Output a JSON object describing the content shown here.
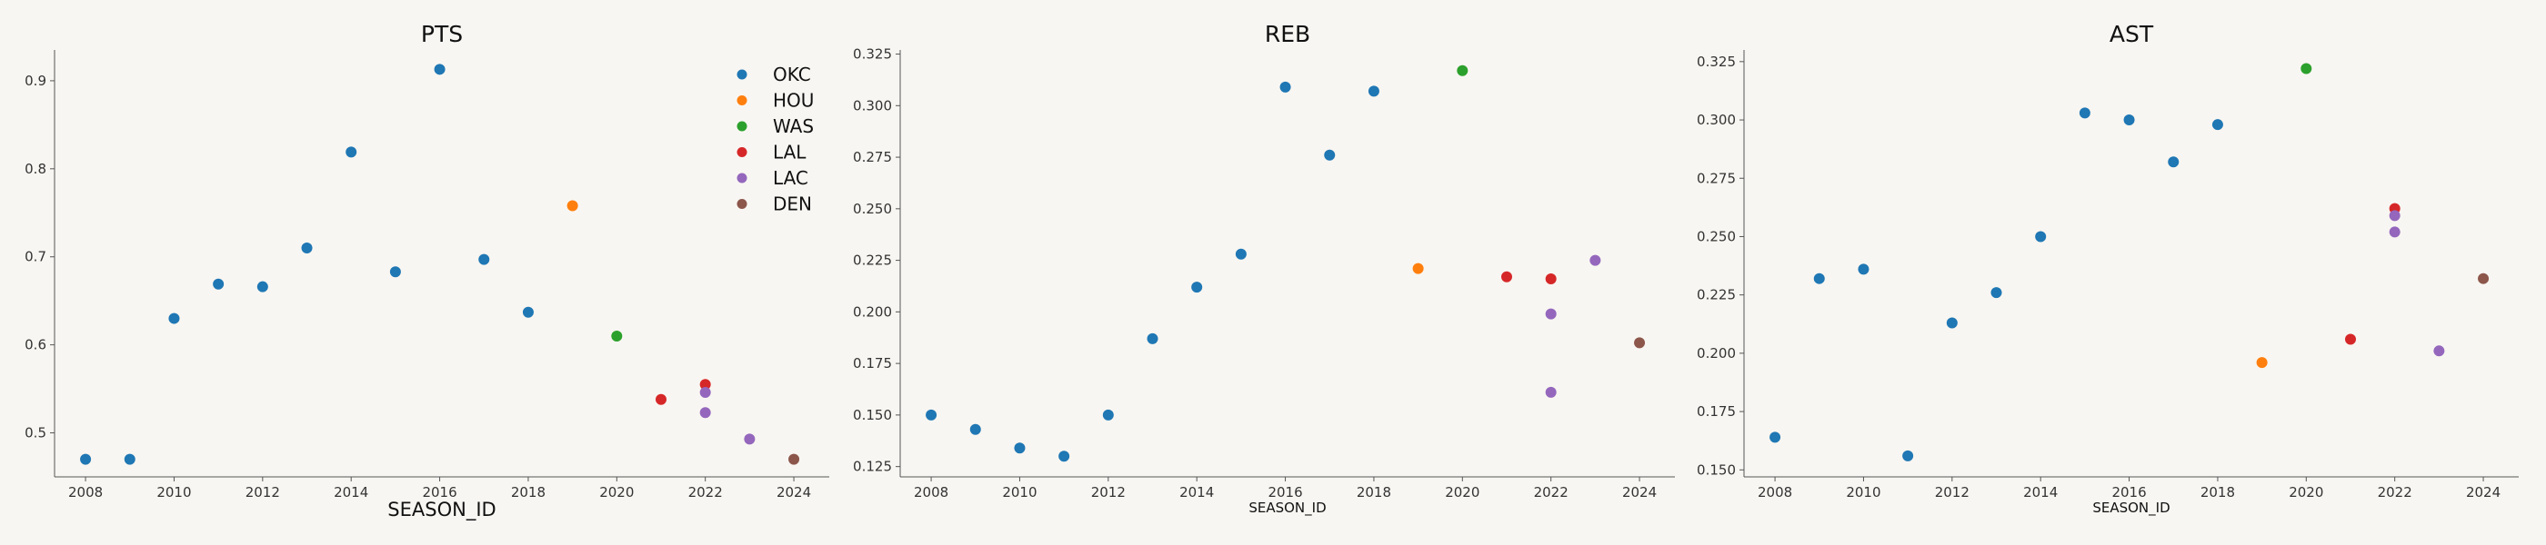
{
  "chart_data": [
    {
      "type": "scatter",
      "title": "PTS",
      "xlabel": "SEASON_ID",
      "ylabel": "",
      "xlim": [
        2007.3,
        2024.8
      ],
      "ylim": [
        0.45,
        0.935
      ],
      "xticks": [
        "2008",
        "2010",
        "2012",
        "2014",
        "2016",
        "2018",
        "2020",
        "2022",
        "2024"
      ],
      "yticks": [
        "0.5",
        "0.6",
        "0.7",
        "0.8",
        "0.9"
      ],
      "legend": "top-right",
      "series": [
        {
          "name": "OKC",
          "color": "#1f77b4",
          "points": [
            [
              2008,
              0.47
            ],
            [
              2009,
              0.47
            ],
            [
              2010,
              0.63
            ],
            [
              2011,
              0.669
            ],
            [
              2012,
              0.666
            ],
            [
              2013,
              0.71
            ],
            [
              2014,
              0.819
            ],
            [
              2015,
              0.683
            ],
            [
              2016,
              0.913
            ],
            [
              2017,
              0.697
            ],
            [
              2018,
              0.637
            ]
          ]
        },
        {
          "name": "HOU",
          "color": "#ff7f0e",
          "points": [
            [
              2019,
              0.758
            ]
          ]
        },
        {
          "name": "WAS",
          "color": "#2ca02c",
          "points": [
            [
              2020,
              0.61
            ]
          ]
        },
        {
          "name": "LAL",
          "color": "#d62728",
          "points": [
            [
              2021,
              0.538
            ],
            [
              2022,
              0.555
            ]
          ]
        },
        {
          "name": "LAC",
          "color": "#9467bd",
          "points": [
            [
              2022,
              0.546
            ],
            [
              2022,
              0.523
            ],
            [
              2023,
              0.493
            ]
          ]
        },
        {
          "name": "DEN",
          "color": "#8c564b",
          "points": [
            [
              2024,
              0.47
            ]
          ]
        }
      ]
    },
    {
      "type": "scatter",
      "title": "REB",
      "xlabel": "SEASON_ID",
      "ylabel": "",
      "xlim": [
        2007.3,
        2024.8
      ],
      "ylim": [
        0.12,
        0.327
      ],
      "xticks": [
        "2008",
        "2010",
        "2012",
        "2014",
        "2016",
        "2018",
        "2020",
        "2022",
        "2024"
      ],
      "yticks": [
        "0.125",
        "0.150",
        "0.175",
        "0.200",
        "0.225",
        "0.250",
        "0.275",
        "0.300",
        "0.325"
      ],
      "series": [
        {
          "name": "OKC",
          "color": "#1f77b4",
          "points": [
            [
              2008,
              0.15
            ],
            [
              2009,
              0.143
            ],
            [
              2010,
              0.134
            ],
            [
              2011,
              0.13
            ],
            [
              2012,
              0.15
            ],
            [
              2013,
              0.187
            ],
            [
              2014,
              0.212
            ],
            [
              2015,
              0.228
            ],
            [
              2016,
              0.309
            ],
            [
              2017,
              0.276
            ],
            [
              2018,
              0.307
            ]
          ]
        },
        {
          "name": "HOU",
          "color": "#ff7f0e",
          "points": [
            [
              2019,
              0.221
            ]
          ]
        },
        {
          "name": "WAS",
          "color": "#2ca02c",
          "points": [
            [
              2020,
              0.317
            ]
          ]
        },
        {
          "name": "LAL",
          "color": "#d62728",
          "points": [
            [
              2021,
              0.217
            ],
            [
              2022,
              0.216
            ]
          ]
        },
        {
          "name": "LAC",
          "color": "#9467bd",
          "points": [
            [
              2022,
              0.199
            ],
            [
              2022,
              0.161
            ],
            [
              2023,
              0.225
            ]
          ]
        },
        {
          "name": "DEN",
          "color": "#8c564b",
          "points": [
            [
              2024,
              0.185
            ]
          ]
        }
      ]
    },
    {
      "type": "scatter",
      "title": "AST",
      "xlabel": "SEASON_ID",
      "ylabel": "",
      "xlim": [
        2007.3,
        2024.8
      ],
      "ylim": [
        0.147,
        0.33
      ],
      "xticks": [
        "2008",
        "2010",
        "2012",
        "2014",
        "2016",
        "2018",
        "2020",
        "2022",
        "2024"
      ],
      "yticks": [
        "0.150",
        "0.175",
        "0.200",
        "0.225",
        "0.250",
        "0.275",
        "0.300",
        "0.325"
      ],
      "series": [
        {
          "name": "OKC",
          "color": "#1f77b4",
          "points": [
            [
              2008,
              0.164
            ],
            [
              2009,
              0.232
            ],
            [
              2010,
              0.236
            ],
            [
              2011,
              0.156
            ],
            [
              2012,
              0.213
            ],
            [
              2013,
              0.226
            ],
            [
              2014,
              0.25
            ],
            [
              2015,
              0.303
            ],
            [
              2016,
              0.3
            ],
            [
              2017,
              0.282
            ],
            [
              2018,
              0.298
            ]
          ]
        },
        {
          "name": "HOU",
          "color": "#ff7f0e",
          "points": [
            [
              2019,
              0.196
            ]
          ]
        },
        {
          "name": "WAS",
          "color": "#2ca02c",
          "points": [
            [
              2020,
              0.322
            ]
          ]
        },
        {
          "name": "LAL",
          "color": "#d62728",
          "points": [
            [
              2021,
              0.206
            ],
            [
              2022,
              0.262
            ]
          ]
        },
        {
          "name": "LAC",
          "color": "#9467bd",
          "points": [
            [
              2022,
              0.259
            ],
            [
              2022,
              0.252
            ],
            [
              2023,
              0.201
            ]
          ]
        },
        {
          "name": "DEN",
          "color": "#8c564b",
          "points": [
            [
              2024,
              0.232
            ]
          ]
        }
      ]
    }
  ]
}
